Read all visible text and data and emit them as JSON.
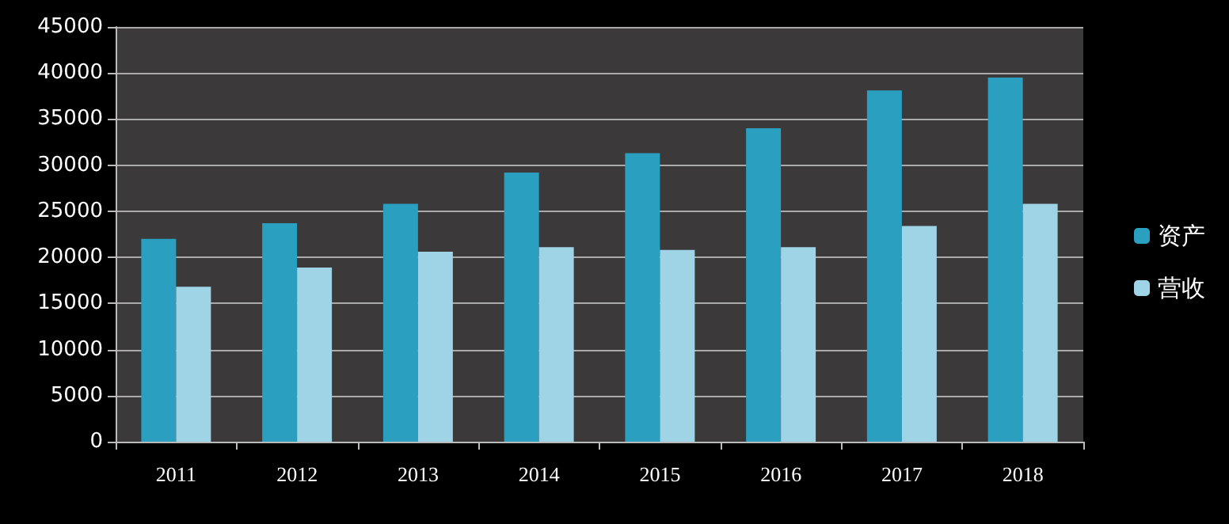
{
  "chart_data": {
    "type": "bar",
    "categories": [
      "2011",
      "2012",
      "2013",
      "2014",
      "2015",
      "2016",
      "2017",
      "2018"
    ],
    "series": [
      {
        "name": "资产",
        "color": "#2a9fc0",
        "values": [
          22000,
          23700,
          25800,
          29200,
          31300,
          34000,
          38100,
          39500
        ]
      },
      {
        "name": "营收",
        "color": "#9fd3e6",
        "values": [
          16800,
          18900,
          20600,
          21100,
          20800,
          21100,
          23400,
          25800
        ]
      }
    ],
    "ylim": [
      0,
      45000
    ],
    "yticks": [
      0,
      5000,
      10000,
      15000,
      20000,
      25000,
      30000,
      35000,
      40000,
      45000
    ],
    "grid": "y",
    "legend": "right"
  }
}
